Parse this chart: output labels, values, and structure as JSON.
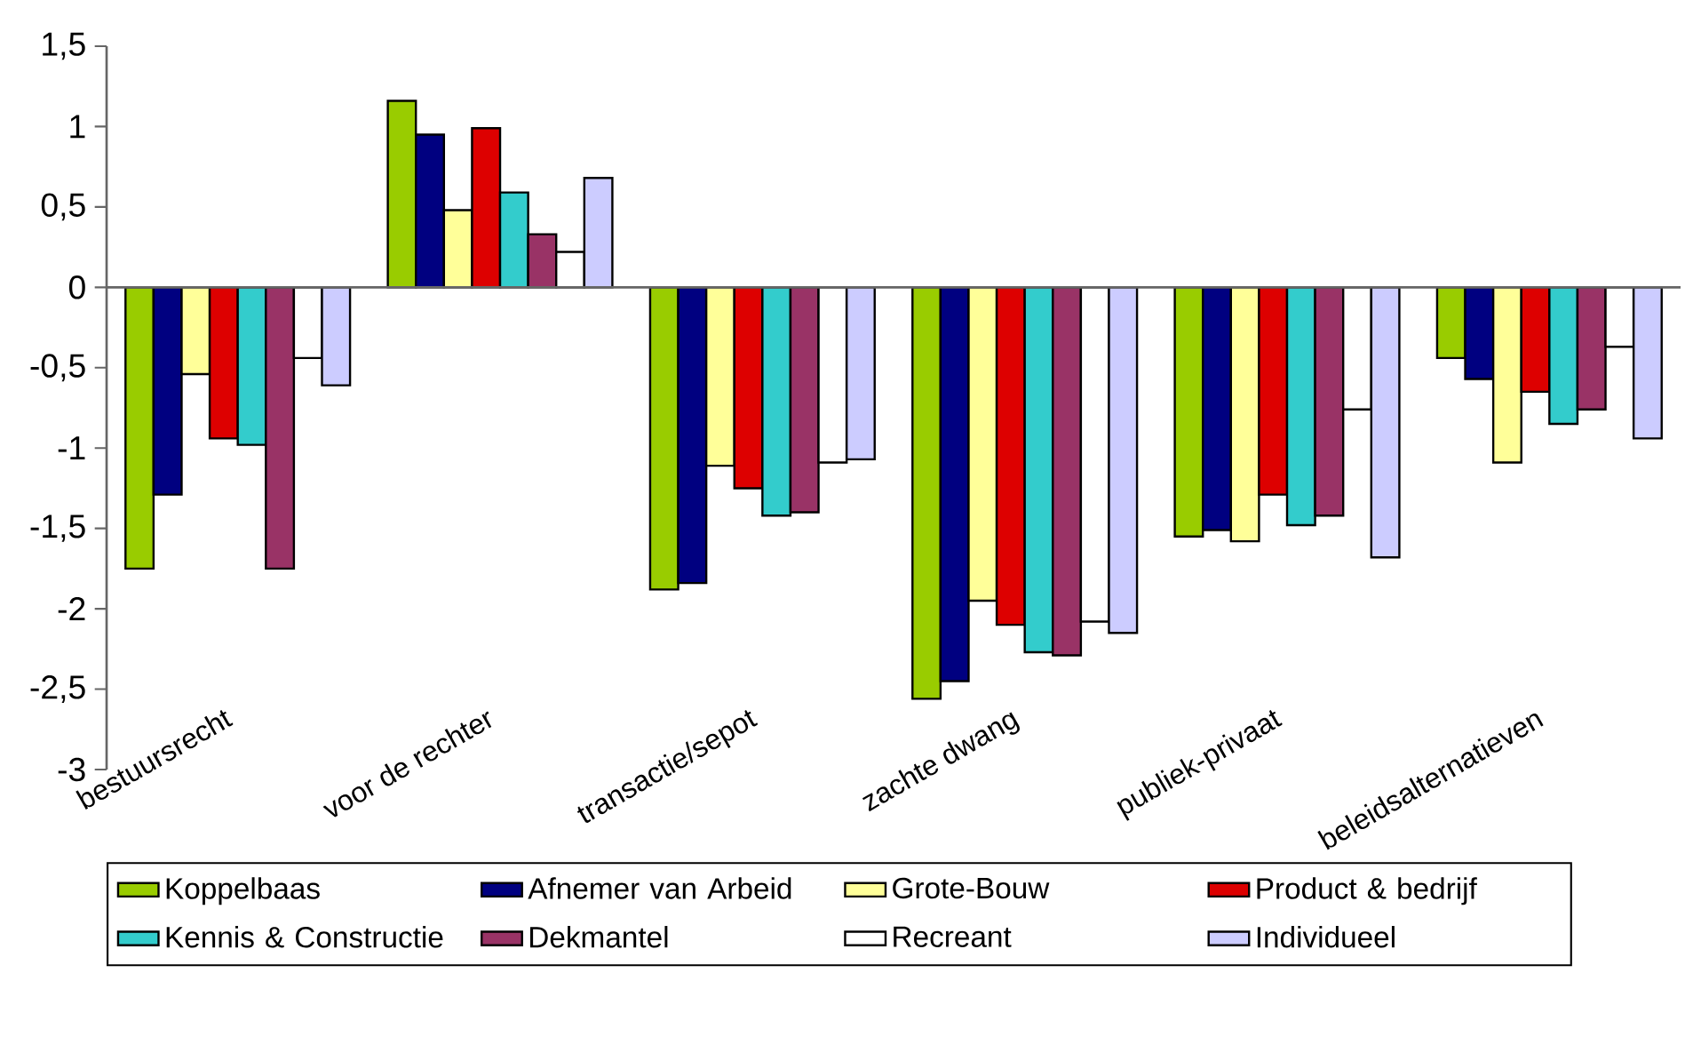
{
  "chart_data": {
    "type": "bar",
    "categories": [
      "bestuursrecht",
      "voor de rechter",
      "transactie/sepot",
      "zachte dwang",
      "publiek-privaat",
      "beleidsalternatieven"
    ],
    "series": [
      {
        "name": "Koppelbaas",
        "color": "#99cc00",
        "values": [
          -1.75,
          1.16,
          -1.88,
          -2.56,
          -1.55,
          -0.44
        ]
      },
      {
        "name": "Afnemer van Arbeid",
        "color": "#000080",
        "values": [
          -1.29,
          0.95,
          -1.84,
          -2.45,
          -1.51,
          -0.57
        ]
      },
      {
        "name": "Grote-Bouw",
        "color": "#ffff99",
        "values": [
          -0.54,
          0.48,
          -1.11,
          -1.95,
          -1.58,
          -1.09
        ]
      },
      {
        "name": "Product & bedrijf",
        "color": "#dd0000",
        "values": [
          -0.94,
          0.99,
          -1.25,
          -2.1,
          -1.29,
          -0.65
        ]
      },
      {
        "name": "Kennis & Constructie",
        "color": "#33cccc",
        "values": [
          -0.98,
          0.59,
          -1.42,
          -2.27,
          -1.48,
          -0.85
        ]
      },
      {
        "name": "Dekmantel",
        "color": "#993366",
        "values": [
          -1.75,
          0.33,
          -1.4,
          -2.29,
          -1.42,
          -0.76
        ]
      },
      {
        "name": "Recreant",
        "color": "#ffffff",
        "values": [
          -0.44,
          0.22,
          -1.09,
          -2.08,
          -0.76,
          -0.37
        ]
      },
      {
        "name": "Individueel",
        "color": "#ccccff",
        "values": [
          -0.61,
          0.68,
          -1.07,
          -2.15,
          -1.68,
          -0.94
        ]
      }
    ],
    "ylim": [
      -3,
      1.5
    ],
    "yticks": [
      {
        "value": 1.5,
        "label": "1,5"
      },
      1,
      {
        "value": 0.5,
        "label": "0,5"
      },
      0,
      {
        "value": -0.5,
        "label": "-0,5"
      },
      -1,
      {
        "value": -1.5,
        "label": "-1,5"
      },
      -2,
      {
        "value": -2.5,
        "label": "-2,5"
      },
      -3
    ],
    "legend": "bottom"
  }
}
